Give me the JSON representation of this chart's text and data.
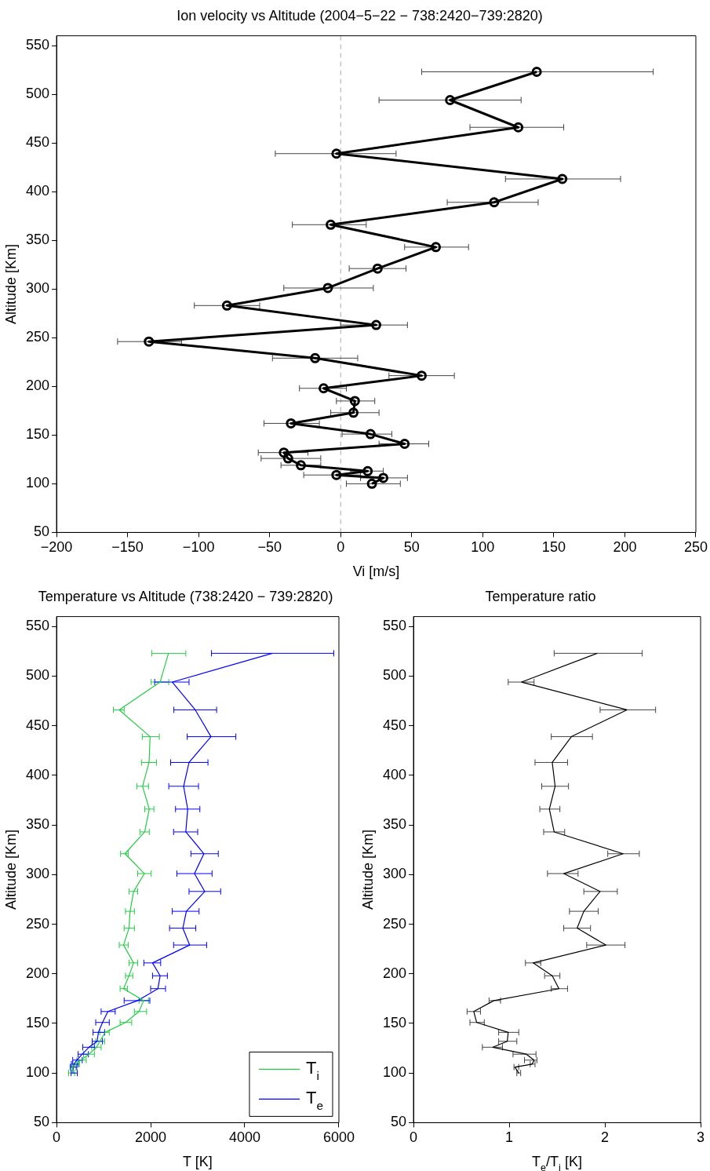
{
  "chart_data": [
    {
      "type": "line",
      "title": "Ion velocity vs Altitude (2004−5−22 − 738:2420−739:2820)",
      "xlabel": "Vi [m/s]",
      "ylabel": "Altitude [Km]",
      "color": "#000000",
      "marker": "circle",
      "line_style": "solid",
      "x": [
        138,
        77,
        125,
        -3,
        156,
        108,
        -7,
        67,
        26,
        -9,
        -80,
        25,
        -135,
        -18,
        57,
        -12,
        10,
        9,
        -35,
        21,
        45,
        -40,
        -37,
        -28,
        19,
        -3,
        30,
        22
      ],
      "values": [
        523,
        494,
        466,
        439,
        413,
        389,
        366,
        343,
        321,
        301,
        283,
        263,
        246,
        229,
        211,
        198,
        185,
        173,
        162,
        151,
        141,
        132,
        126,
        119,
        113,
        109,
        106,
        100
      ],
      "xerrors": [
        [
          57,
          220
        ],
        [
          27,
          127
        ],
        [
          91,
          157
        ],
        [
          -46,
          39
        ],
        [
          116,
          197
        ],
        [
          75,
          139
        ],
        [
          -34,
          18
        ],
        [
          45,
          90
        ],
        [
          6,
          46
        ],
        [
          -40,
          23
        ],
        [
          -103,
          -57
        ],
        [
          0,
          47
        ],
        [
          -157,
          -112
        ],
        [
          -48,
          12
        ],
        [
          34,
          80
        ],
        [
          -29,
          4
        ],
        [
          -3,
          24
        ],
        [
          -7,
          27
        ],
        [
          -54,
          -15
        ],
        [
          1,
          36
        ],
        [
          27,
          62
        ],
        [
          -58,
          -23
        ],
        [
          -56,
          -14
        ],
        [
          -42,
          -14
        ],
        [
          7,
          30
        ],
        [
          -26,
          14
        ],
        [
          14,
          47
        ],
        [
          4,
          42
        ]
      ],
      "xlim": [
        -200,
        250
      ],
      "xticks": [
        -200,
        -150,
        -100,
        -50,
        0,
        50,
        100,
        150,
        200,
        250
      ],
      "ylim": [
        50,
        560
      ],
      "yticks": [
        50,
        100,
        150,
        200,
        250,
        300,
        350,
        400,
        450,
        500,
        550
      ],
      "ref_lines": [
        {
          "axis": "x",
          "value": 0,
          "color": "#aaaaaa",
          "line_style": "dashed"
        }
      ]
    },
    {
      "type": "line",
      "title": "Temperature vs Altitude (738:2420 − 739:2820)",
      "xlabel": "T [K]",
      "ylabel": "Altitude [Km]",
      "legend": "bottom right",
      "line_style": "solid",
      "series": [
        {
          "name": "T$_{i}$",
          "color": "#22cc44",
          "x": [
            2379,
            2201,
            1333,
            1989,
            1966,
            1828,
            1971,
            1874,
            1454,
            1868,
            1638,
            1563,
            1540,
            1425,
            1638,
            1540,
            1425,
            1851,
            1753,
            1466,
            1034,
            920,
            851,
            690,
            517,
            414,
            345,
            333
          ],
          "values": [
            523,
            494,
            466,
            439,
            413,
            389,
            366,
            343,
            321,
            301,
            283,
            263,
            246,
            229,
            211,
            198,
            185,
            173,
            162,
            151,
            141,
            132,
            126,
            119,
            113,
            109,
            106,
            100
          ],
          "xerrors": [
            [
              2023,
              2747
            ],
            [
              2011,
              2385
            ],
            [
              1207,
              1437
            ],
            [
              1822,
              2184
            ],
            [
              1805,
              2126
            ],
            [
              1707,
              1954
            ],
            [
              1874,
              2069
            ],
            [
              1770,
              1971
            ],
            [
              1362,
              1523
            ],
            [
              1724,
              2011
            ],
            [
              1540,
              1724
            ],
            [
              1465,
              1655
            ],
            [
              1437,
              1655
            ],
            [
              1333,
              1523
            ],
            [
              1540,
              1724
            ],
            [
              1465,
              1621
            ],
            [
              1351,
              1506
            ],
            [
              1753,
              1954
            ],
            [
              1655,
              1914
            ],
            [
              1351,
              1598
            ],
            [
              920,
              1121
            ],
            [
              833,
              1023
            ],
            [
              747,
              948
            ],
            [
              575,
              805
            ],
            [
              431,
              632
            ],
            [
              345,
              489
            ],
            [
              287,
              414
            ],
            [
              258,
              385
            ]
          ]
        },
        {
          "name": "T$_{e}$",
          "color": "#0000ff",
          "x": [
            4586,
            2460,
            2948,
            3282,
            2816,
            2701,
            2787,
            2747,
            3132,
            2931,
            3149,
            2759,
            2684,
            2828,
            2040,
            2201,
            2155,
            1724,
            1092,
            977,
            891,
            862,
            690,
            546,
            431,
            374,
            356,
            345
          ],
          "values": [
            523,
            494,
            466,
            439,
            413,
            389,
            366,
            343,
            321,
            301,
            283,
            263,
            246,
            229,
            211,
            198,
            185,
            173,
            162,
            151,
            141,
            132,
            126,
            119,
            113,
            109,
            106,
            100
          ],
          "xerrors": [
            [
              3293,
              5891
            ],
            [
              2086,
              2816
            ],
            [
              2494,
              3402
            ],
            [
              2776,
              3810
            ],
            [
              2425,
              3218
            ],
            [
              2385,
              3017
            ],
            [
              2529,
              3046
            ],
            [
              2488,
              3000
            ],
            [
              2856,
              3437
            ],
            [
              2557,
              3305
            ],
            [
              2816,
              3488
            ],
            [
              2460,
              3029
            ],
            [
              2402,
              2960
            ],
            [
              2488,
              3190
            ],
            [
              1856,
              2213
            ],
            [
              2040,
              2356
            ],
            [
              2000,
              2316
            ],
            [
              1437,
              1983
            ],
            [
              948,
              1247
            ],
            [
              833,
              1121
            ],
            [
              776,
              1023
            ],
            [
              759,
              977
            ],
            [
              557,
              805
            ],
            [
              460,
              678
            ],
            [
              345,
              546
            ],
            [
              316,
              460
            ],
            [
              299,
              431
            ],
            [
              310,
              442
            ]
          ]
        }
      ],
      "xlim": [
        0,
        6000
      ],
      "xticks": [
        0,
        2000,
        4000,
        6000
      ],
      "ylim": [
        50,
        560
      ],
      "yticks": [
        50,
        100,
        150,
        200,
        250,
        300,
        350,
        400,
        450,
        500,
        550
      ]
    },
    {
      "type": "line",
      "title": "Temperature ratio",
      "xlabel": "T$_{e}$/T$_{i}$ [K]",
      "ylabel": "Altitude [Km]",
      "color": "#000000",
      "line_style": "solid",
      "x": [
        1.92,
        1.13,
        2.23,
        1.65,
        1.45,
        1.48,
        1.42,
        1.47,
        2.19,
        1.57,
        1.95,
        1.78,
        1.71,
        2.01,
        1.25,
        1.45,
        1.52,
        0.84,
        0.63,
        0.66,
        0.99,
        0.98,
        0.83,
        1.18,
        1.26,
        1.24,
        1.06,
        1.1
      ],
      "values": [
        523,
        494,
        466,
        439,
        413,
        389,
        366,
        343,
        321,
        301,
        283,
        263,
        246,
        229,
        211,
        198,
        185,
        173,
        162,
        151,
        141,
        132,
        126,
        119,
        113,
        109,
        106,
        100
      ],
      "xerrors": [
        [
          1.47,
          2.39
        ],
        [
          0.99,
          1.26
        ],
        [
          1.95,
          2.53
        ],
        [
          1.44,
          1.87
        ],
        [
          1.27,
          1.61
        ],
        [
          1.34,
          1.62
        ],
        [
          1.32,
          1.53
        ],
        [
          1.36,
          1.58
        ],
        [
          2.03,
          2.36
        ],
        [
          1.4,
          1.72
        ],
        [
          1.78,
          2.13
        ],
        [
          1.63,
          1.93
        ],
        [
          1.57,
          1.85
        ],
        [
          1.81,
          2.21
        ],
        [
          1.17,
          1.33
        ],
        [
          1.37,
          1.53
        ],
        [
          1.44,
          1.61
        ],
        [
          0.79,
          0.91
        ],
        [
          0.56,
          0.7
        ],
        [
          0.59,
          0.74
        ],
        [
          0.89,
          1.1
        ],
        [
          0.89,
          1.08
        ],
        [
          0.72,
          0.93
        ],
        [
          1.04,
          1.28
        ],
        [
          1.16,
          1.29
        ],
        [
          1.22,
          1.27
        ],
        [
          1.05,
          1.1
        ],
        [
          1.08,
          1.12
        ]
      ],
      "xlim": [
        0,
        3
      ],
      "xticks": [
        0,
        1,
        2,
        3
      ],
      "ylim": [
        50,
        560
      ],
      "yticks": [
        50,
        100,
        150,
        200,
        250,
        300,
        350,
        400,
        450,
        500,
        550
      ]
    }
  ]
}
